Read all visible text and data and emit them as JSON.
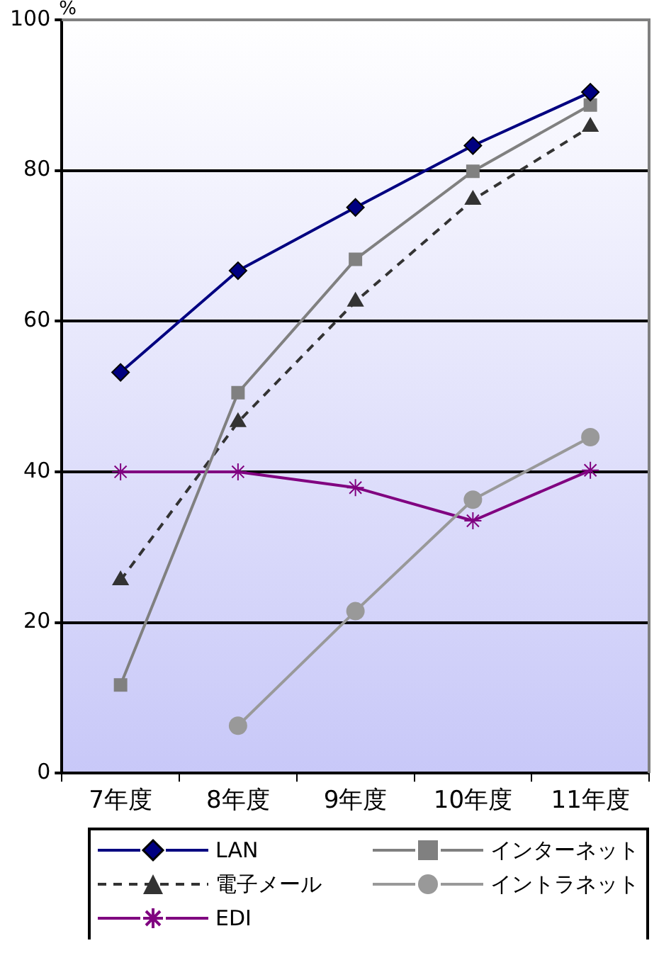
{
  "chart_data": {
    "type": "line",
    "ylabel": "%",
    "categories": [
      "7年度",
      "8年度",
      "9年度",
      "10年度",
      "11年度"
    ],
    "ylim": [
      0,
      100
    ],
    "yticks": [
      0,
      20,
      40,
      60,
      80,
      100
    ],
    "grid": "y",
    "legend": "bottom",
    "series": [
      {
        "name": "LAN",
        "color": "#000080",
        "marker": "diamond",
        "line_style": "solid",
        "values": [
          53.2,
          66.7,
          75.1,
          83.3,
          90.4
        ]
      },
      {
        "name": "インターネット",
        "color": "#808080",
        "marker": "square",
        "line_style": "solid",
        "values": [
          11.7,
          50.5,
          68.2,
          79.9,
          88.7
        ]
      },
      {
        "name": "電子メール",
        "color": "#333333",
        "marker": "triangle",
        "line_style": "dashed",
        "values": [
          25.6,
          46.6,
          62.6,
          76.1,
          85.8
        ]
      },
      {
        "name": "イントラネット",
        "color": "#999999",
        "marker": "circle",
        "line_style": "solid",
        "values": [
          null,
          6.3,
          21.5,
          36.3,
          44.6
        ]
      },
      {
        "name": "EDI",
        "color": "#800080",
        "marker": "cross",
        "line_style": "solid",
        "values": [
          40,
          40,
          37.9,
          33.5,
          40.2
        ]
      }
    ]
  }
}
